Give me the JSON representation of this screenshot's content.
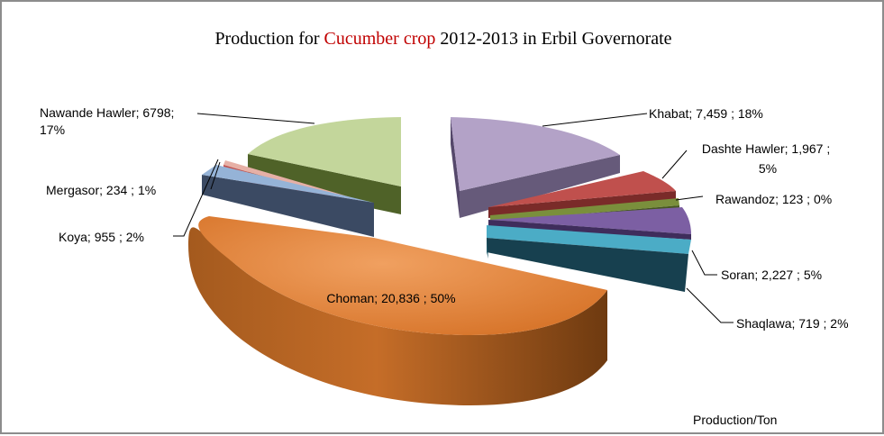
{
  "chart_data": {
    "type": "pie",
    "title_parts": [
      "Production  for  ",
      "Cucumber crop",
      "  2012-2013 in Erbil Governorate"
    ],
    "title_highlight_color": "#c00000",
    "unit_note": "Production/Ton",
    "slices": [
      {
        "name": "Khabat",
        "value": 7459,
        "percent": 18,
        "label": "Khabat;  7,459 ; 18%",
        "color": "#b3a2c7",
        "side": "#665a7a"
      },
      {
        "name": "Dashte Hawler",
        "value": 1967,
        "percent": 5,
        "label_lines": [
          "Dashte Hawler;  1,967 ;",
          "5%"
        ],
        "color": "#c0504d",
        "side": "#7a2b29"
      },
      {
        "name": "Rawandoz",
        "value": 123,
        "percent": 0,
        "label": "Rawandoz;  123 ; 0%",
        "color": "#7a8f3c",
        "side": "#465720"
      },
      {
        "name": "Soran",
        "value": 2227,
        "percent": 5,
        "label": "Soran;  2,227 ; 5%",
        "color": "#7c5fa3",
        "side": "#3f2d5c"
      },
      {
        "name": "Shaqlawa",
        "value": 719,
        "percent": 2,
        "label": "Shaqlawa;  719 ; 2%",
        "color": "#4bacc6",
        "side": "#215e6e"
      },
      {
        "name": "Choman",
        "value": 20836,
        "percent": 50,
        "label": "Choman;  20,836 ; 50%",
        "color": "#e0843a",
        "side": "#8e4a14"
      },
      {
        "name": "Koya",
        "value": 955,
        "percent": 2,
        "label": "Koya;  955 ; 2%",
        "color": "#95b3d7",
        "side": "#3b4a63"
      },
      {
        "name": "Mergasor",
        "value": 234,
        "percent": 1,
        "label": "Mergasor;  234 ; 1%",
        "color": "#e6b0a6",
        "side": "#c0504d"
      },
      {
        "name": "Nawande Hawler",
        "value": 6798,
        "percent": 17,
        "label_lines": [
          "Nawande Hawler; 6798;",
          "17%"
        ],
        "color": "#c3d69b",
        "side": "#4f6228"
      }
    ]
  }
}
